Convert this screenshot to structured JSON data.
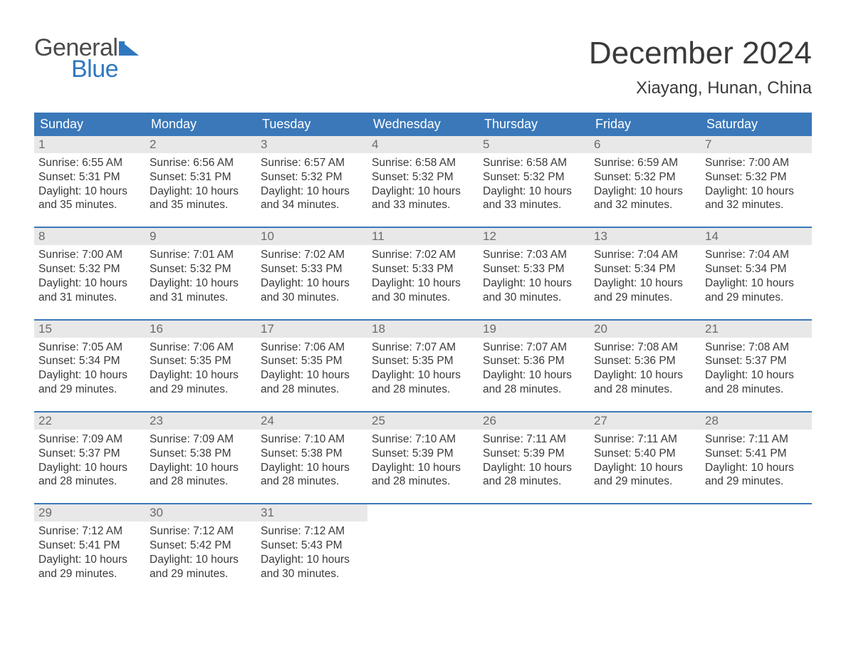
{
  "brand": {
    "word1": "General",
    "word2": "Blue",
    "text_color": "#4a4a4a",
    "accent_color": "#2f78bf"
  },
  "header": {
    "title": "December 2024",
    "location": "Xiayang, Hunan, China"
  },
  "calendar": {
    "headers_bg": "#3a78b9",
    "headers_fg": "#ffffff",
    "daynum_bg": "#e8e8e8",
    "row_border_color": "#3a78b9",
    "columns": [
      "Sunday",
      "Monday",
      "Tuesday",
      "Wednesday",
      "Thursday",
      "Friday",
      "Saturday"
    ]
  },
  "days": [
    {
      "n": "1",
      "sunrise": "6:55 AM",
      "sunset": "5:31 PM",
      "dl": "10 hours and 35 minutes."
    },
    {
      "n": "2",
      "sunrise": "6:56 AM",
      "sunset": "5:31 PM",
      "dl": "10 hours and 35 minutes."
    },
    {
      "n": "3",
      "sunrise": "6:57 AM",
      "sunset": "5:32 PM",
      "dl": "10 hours and 34 minutes."
    },
    {
      "n": "4",
      "sunrise": "6:58 AM",
      "sunset": "5:32 PM",
      "dl": "10 hours and 33 minutes."
    },
    {
      "n": "5",
      "sunrise": "6:58 AM",
      "sunset": "5:32 PM",
      "dl": "10 hours and 33 minutes."
    },
    {
      "n": "6",
      "sunrise": "6:59 AM",
      "sunset": "5:32 PM",
      "dl": "10 hours and 32 minutes."
    },
    {
      "n": "7",
      "sunrise": "7:00 AM",
      "sunset": "5:32 PM",
      "dl": "10 hours and 32 minutes."
    },
    {
      "n": "8",
      "sunrise": "7:00 AM",
      "sunset": "5:32 PM",
      "dl": "10 hours and 31 minutes."
    },
    {
      "n": "9",
      "sunrise": "7:01 AM",
      "sunset": "5:32 PM",
      "dl": "10 hours and 31 minutes."
    },
    {
      "n": "10",
      "sunrise": "7:02 AM",
      "sunset": "5:33 PM",
      "dl": "10 hours and 30 minutes."
    },
    {
      "n": "11",
      "sunrise": "7:02 AM",
      "sunset": "5:33 PM",
      "dl": "10 hours and 30 minutes."
    },
    {
      "n": "12",
      "sunrise": "7:03 AM",
      "sunset": "5:33 PM",
      "dl": "10 hours and 30 minutes."
    },
    {
      "n": "13",
      "sunrise": "7:04 AM",
      "sunset": "5:34 PM",
      "dl": "10 hours and 29 minutes."
    },
    {
      "n": "14",
      "sunrise": "7:04 AM",
      "sunset": "5:34 PM",
      "dl": "10 hours and 29 minutes."
    },
    {
      "n": "15",
      "sunrise": "7:05 AM",
      "sunset": "5:34 PM",
      "dl": "10 hours and 29 minutes."
    },
    {
      "n": "16",
      "sunrise": "7:06 AM",
      "sunset": "5:35 PM",
      "dl": "10 hours and 29 minutes."
    },
    {
      "n": "17",
      "sunrise": "7:06 AM",
      "sunset": "5:35 PM",
      "dl": "10 hours and 28 minutes."
    },
    {
      "n": "18",
      "sunrise": "7:07 AM",
      "sunset": "5:35 PM",
      "dl": "10 hours and 28 minutes."
    },
    {
      "n": "19",
      "sunrise": "7:07 AM",
      "sunset": "5:36 PM",
      "dl": "10 hours and 28 minutes."
    },
    {
      "n": "20",
      "sunrise": "7:08 AM",
      "sunset": "5:36 PM",
      "dl": "10 hours and 28 minutes."
    },
    {
      "n": "21",
      "sunrise": "7:08 AM",
      "sunset": "5:37 PM",
      "dl": "10 hours and 28 minutes."
    },
    {
      "n": "22",
      "sunrise": "7:09 AM",
      "sunset": "5:37 PM",
      "dl": "10 hours and 28 minutes."
    },
    {
      "n": "23",
      "sunrise": "7:09 AM",
      "sunset": "5:38 PM",
      "dl": "10 hours and 28 minutes."
    },
    {
      "n": "24",
      "sunrise": "7:10 AM",
      "sunset": "5:38 PM",
      "dl": "10 hours and 28 minutes."
    },
    {
      "n": "25",
      "sunrise": "7:10 AM",
      "sunset": "5:39 PM",
      "dl": "10 hours and 28 minutes."
    },
    {
      "n": "26",
      "sunrise": "7:11 AM",
      "sunset": "5:39 PM",
      "dl": "10 hours and 28 minutes."
    },
    {
      "n": "27",
      "sunrise": "7:11 AM",
      "sunset": "5:40 PM",
      "dl": "10 hours and 29 minutes."
    },
    {
      "n": "28",
      "sunrise": "7:11 AM",
      "sunset": "5:41 PM",
      "dl": "10 hours and 29 minutes."
    },
    {
      "n": "29",
      "sunrise": "7:12 AM",
      "sunset": "5:41 PM",
      "dl": "10 hours and 29 minutes."
    },
    {
      "n": "30",
      "sunrise": "7:12 AM",
      "sunset": "5:42 PM",
      "dl": "10 hours and 29 minutes."
    },
    {
      "n": "31",
      "sunrise": "7:12 AM",
      "sunset": "5:43 PM",
      "dl": "10 hours and 30 minutes."
    }
  ],
  "labels": {
    "sunrise_prefix": "Sunrise: ",
    "sunset_prefix": "Sunset: ",
    "daylight_prefix": "Daylight: "
  }
}
